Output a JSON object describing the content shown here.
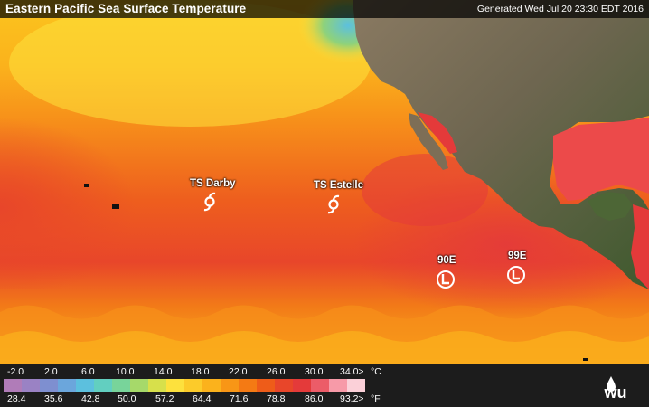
{
  "header": {
    "title": "Eastern Pacific Sea Surface Temperature",
    "generated": "Generated Wed Jul 20 23:30 EDT 2016"
  },
  "storms": [
    {
      "label": "TS Darby",
      "icon": "tropical-storm-icon"
    },
    {
      "label": "TS Estelle",
      "icon": "tropical-storm-icon"
    },
    {
      "label": "90E",
      "icon": "low-pressure-icon"
    },
    {
      "label": "99E",
      "icon": "low-pressure-icon"
    }
  ],
  "legend": {
    "celsius_ticks": [
      "-2.0",
      "2.0",
      "6.0",
      "10.0",
      "14.0",
      "18.0",
      "22.0",
      "26.0",
      "30.0",
      "34.0>"
    ],
    "celsius_unit": "°C",
    "fahrenheit_ticks": [
      "28.4",
      "35.6",
      "42.8",
      "50.0",
      "57.2",
      "64.4",
      "71.6",
      "78.8",
      "86.0",
      "93.2>"
    ],
    "fahrenheit_unit": "°F",
    "colors": [
      "#b07cb8",
      "#9a82c4",
      "#7e8fd0",
      "#6ba6dc",
      "#5cc0de",
      "#62cfc0",
      "#78d49a",
      "#a6d96a",
      "#d7e04b",
      "#fde13d",
      "#fccb2a",
      "#fbb21c",
      "#f89616",
      "#f47a14",
      "#ee5c19",
      "#e8462a",
      "#e43a3a",
      "#ec5c68",
      "#f79aa8",
      "#fbd0d8"
    ]
  },
  "logo": {
    "text": "wu",
    "icon": "wunderground-logo-icon"
  }
}
